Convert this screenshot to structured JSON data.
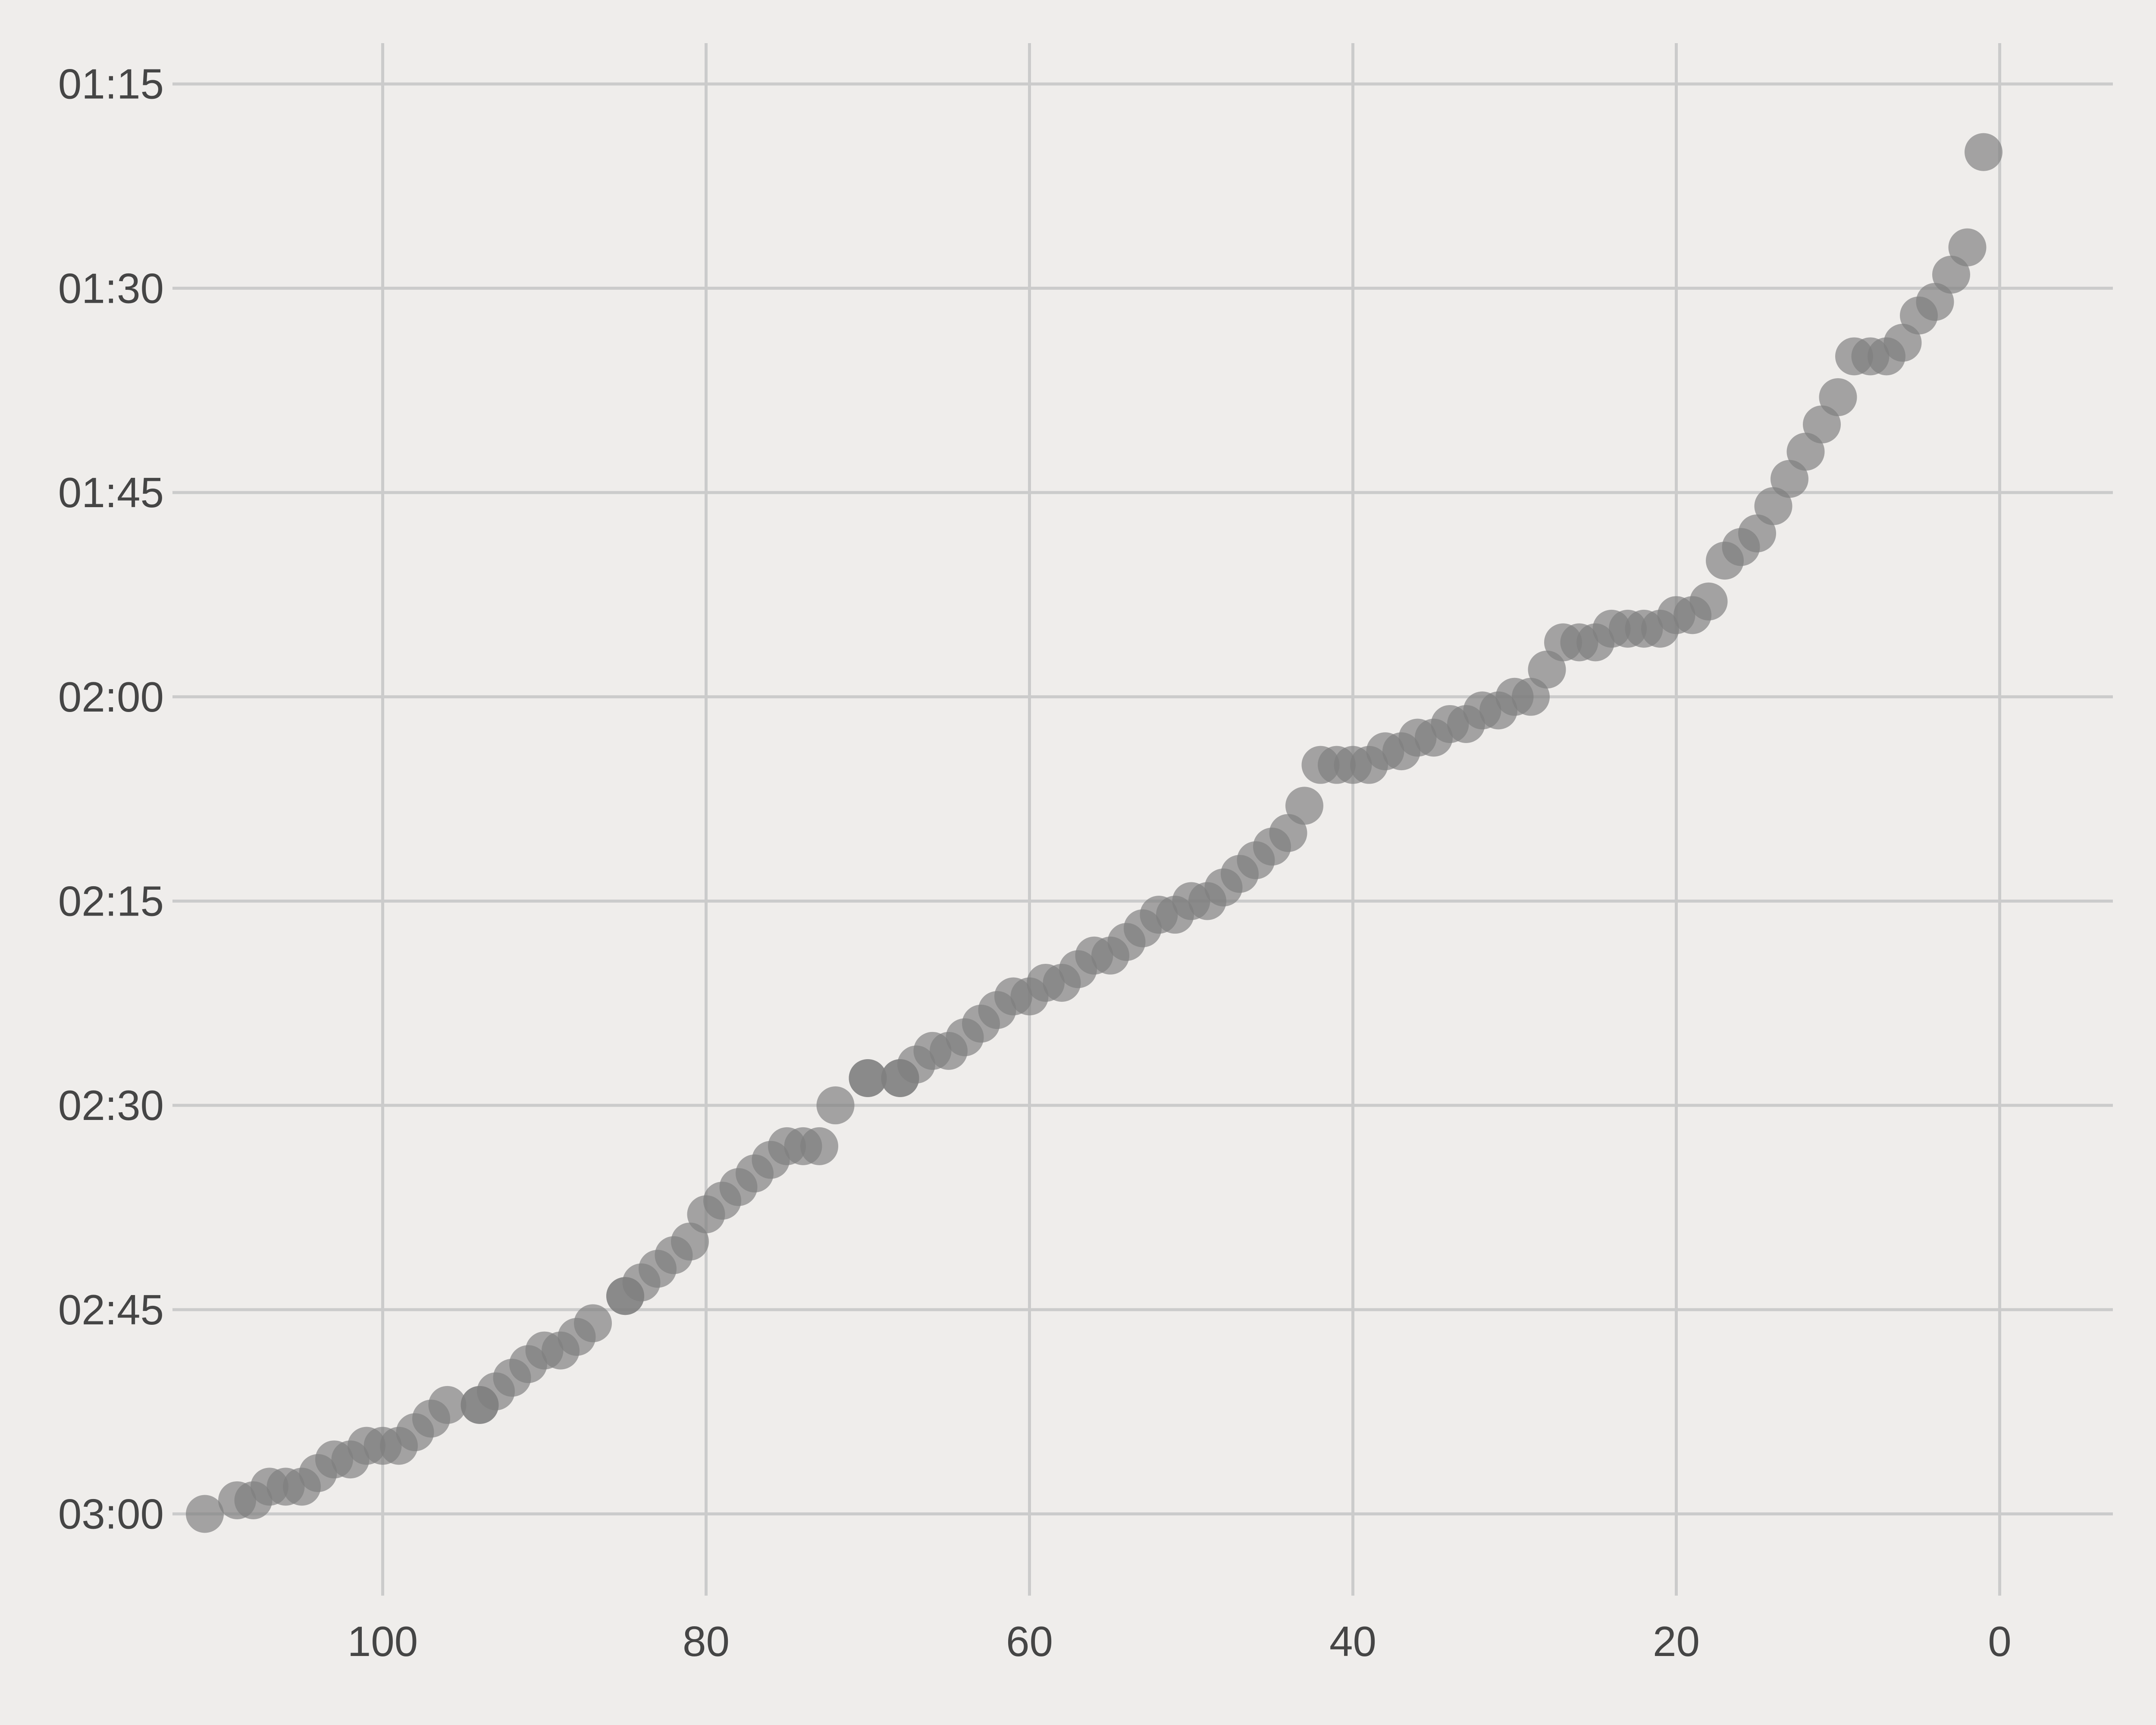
{
  "chart_data": {
    "type": "scatter",
    "title": "",
    "xlabel": "",
    "ylabel": "",
    "x_inverted": true,
    "y_inverted": true,
    "xlim": [
      113,
      -7
    ],
    "ylim": [
      "03:06",
      "01:12"
    ],
    "grid": true,
    "legend": "none",
    "x_ticks": [
      100,
      80,
      60,
      40,
      20,
      0
    ],
    "y_ticks": [
      "01:15",
      "01:30",
      "01:45",
      "02:00",
      "02:15",
      "02:30",
      "02:45",
      "03:00"
    ],
    "colors": {
      "background": "#efedeb",
      "grid": "#cbcbcb",
      "marker": "#7f7f7f",
      "tick_text": "#454545"
    },
    "series": [
      {
        "marker": "circle",
        "points": [
          [
            111,
            "03:00"
          ],
          [
            109,
            "02:59"
          ],
          [
            108,
            "02:59"
          ],
          [
            107,
            "02:58"
          ],
          [
            106,
            "02:58"
          ],
          [
            105,
            "02:58"
          ],
          [
            104,
            "02:57"
          ],
          [
            103,
            "02:56"
          ],
          [
            102,
            "02:56"
          ],
          [
            101,
            "02:55"
          ],
          [
            100,
            "02:55"
          ],
          [
            99,
            "02:55"
          ],
          [
            98,
            "02:54"
          ],
          [
            97,
            "02:53"
          ],
          [
            96,
            "02:52"
          ],
          [
            94,
            "02:52"
          ],
          [
            94,
            "02:52"
          ],
          [
            93,
            "02:51"
          ],
          [
            92,
            "02:50"
          ],
          [
            91,
            "02:49"
          ],
          [
            90,
            "02:48"
          ],
          [
            89,
            "02:48"
          ],
          [
            88,
            "02:47"
          ],
          [
            87,
            "02:46"
          ],
          [
            85,
            "02:44"
          ],
          [
            85,
            "02:44"
          ],
          [
            84,
            "02:43"
          ],
          [
            83,
            "02:42"
          ],
          [
            82,
            "02:41"
          ],
          [
            81,
            "02:40"
          ],
          [
            80,
            "02:38"
          ],
          [
            79,
            "02:37"
          ],
          [
            78,
            "02:36"
          ],
          [
            77,
            "02:35"
          ],
          [
            76,
            "02:34"
          ],
          [
            75,
            "02:33"
          ],
          [
            74,
            "02:33"
          ],
          [
            73,
            "02:33"
          ],
          [
            72,
            "02:30"
          ],
          [
            70,
            "02:28"
          ],
          [
            70,
            "02:28"
          ],
          [
            68,
            "02:28"
          ],
          [
            68,
            "02:28"
          ],
          [
            67,
            "02:27"
          ],
          [
            66,
            "02:26"
          ],
          [
            65,
            "02:26"
          ],
          [
            64,
            "02:25"
          ],
          [
            63,
            "02:24"
          ],
          [
            62,
            "02:23"
          ],
          [
            61,
            "02:22"
          ],
          [
            60,
            "02:22"
          ],
          [
            59,
            "02:21"
          ],
          [
            58,
            "02:21"
          ],
          [
            57,
            "02:20"
          ],
          [
            56,
            "02:19"
          ],
          [
            55,
            "02:19"
          ],
          [
            54,
            "02:18"
          ],
          [
            53,
            "02:17"
          ],
          [
            52,
            "02:16"
          ],
          [
            51,
            "02:16"
          ],
          [
            50,
            "02:15"
          ],
          [
            49,
            "02:15"
          ],
          [
            48,
            "02:14"
          ],
          [
            47,
            "02:13"
          ],
          [
            46,
            "02:12"
          ],
          [
            45,
            "02:11"
          ],
          [
            44,
            "02:10"
          ],
          [
            43,
            "02:08"
          ],
          [
            42,
            "02:05"
          ],
          [
            41,
            "02:05"
          ],
          [
            40,
            "02:05"
          ],
          [
            39,
            "02:05"
          ],
          [
            38,
            "02:04"
          ],
          [
            37,
            "02:04"
          ],
          [
            36,
            "02:03"
          ],
          [
            35,
            "02:03"
          ],
          [
            34,
            "02:02"
          ],
          [
            33,
            "02:02"
          ],
          [
            32,
            "02:01"
          ],
          [
            31,
            "02:01"
          ],
          [
            30,
            "02:00"
          ],
          [
            29,
            "02:00"
          ],
          [
            28,
            "01:58"
          ],
          [
            27,
            "01:56"
          ],
          [
            26,
            "01:56"
          ],
          [
            25,
            "01:56"
          ],
          [
            24,
            "01:55"
          ],
          [
            23,
            "01:55"
          ],
          [
            22,
            "01:55"
          ],
          [
            21,
            "01:55"
          ],
          [
            20,
            "01:54"
          ],
          [
            19,
            "01:54"
          ],
          [
            18,
            "01:53"
          ],
          [
            17,
            "01:50"
          ],
          [
            16,
            "01:49"
          ],
          [
            15,
            "01:48"
          ],
          [
            14,
            "01:46"
          ],
          [
            13,
            "01:44"
          ],
          [
            12,
            "01:42"
          ],
          [
            11,
            "01:40"
          ],
          [
            10,
            "01:38"
          ],
          [
            9,
            "01:35"
          ],
          [
            8,
            "01:35"
          ],
          [
            7,
            "01:35"
          ],
          [
            6,
            "01:34"
          ],
          [
            5,
            "01:32"
          ],
          [
            4,
            "01:31"
          ],
          [
            3,
            "01:29"
          ],
          [
            2,
            "01:27"
          ],
          [
            1,
            "01:20"
          ]
        ]
      }
    ]
  }
}
